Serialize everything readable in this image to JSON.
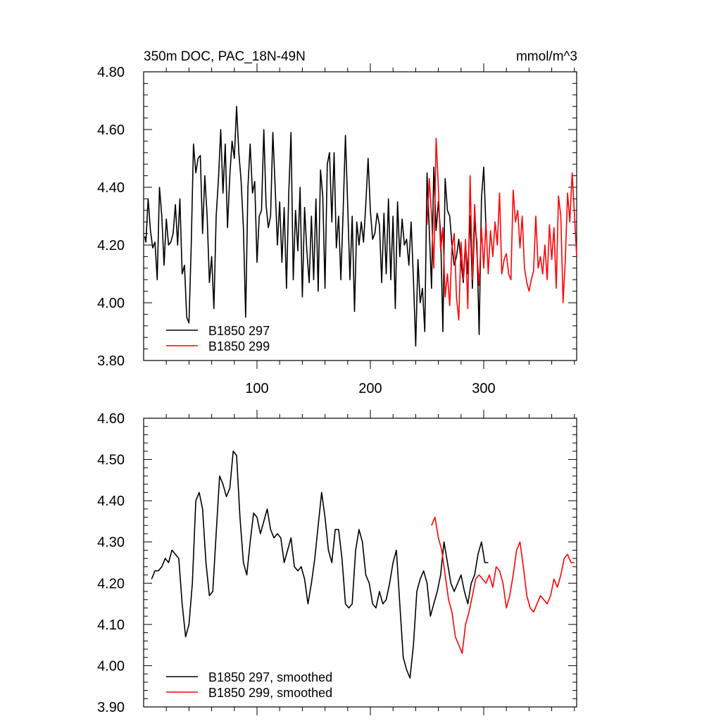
{
  "colors": {
    "series_297": "#000000",
    "series_299": "#ff0000",
    "axis": "#000000",
    "background": "#ffffff"
  },
  "chart_data": [
    {
      "type": "line",
      "title": "350m DOC, PAC_18N-49N",
      "units": "mmol/m^3",
      "xlabel": "",
      "ylabel": "",
      "xlim": [
        0,
        382
      ],
      "ylim": [
        3.8,
        4.8
      ],
      "xticks": [
        100,
        200,
        300
      ],
      "xtick_labels": [
        "100",
        "200",
        "300"
      ],
      "yticks": [
        3.8,
        4.0,
        4.2,
        4.4,
        4.6,
        4.8
      ],
      "ytick_labels": [
        "3.80",
        "4.00",
        "4.20",
        "4.40",
        "4.60",
        "4.80"
      ],
      "legend_position": "bottom-left",
      "series": [
        {
          "name": "B1850 297",
          "color": "#000000",
          "x": [
            1,
            2,
            4,
            6,
            8,
            10,
            12,
            14,
            16,
            18,
            20,
            22,
            24,
            26,
            28,
            30,
            32,
            34,
            36,
            38,
            40,
            42,
            44,
            46,
            48,
            50,
            52,
            54,
            56,
            58,
            60,
            62,
            64,
            66,
            68,
            70,
            72,
            74,
            76,
            78,
            80,
            82,
            84,
            86,
            88,
            90,
            92,
            94,
            96,
            98,
            100,
            102,
            104,
            106,
            108,
            110,
            112,
            114,
            116,
            118,
            120,
            122,
            124,
            126,
            128,
            130,
            132,
            134,
            136,
            138,
            140,
            142,
            144,
            146,
            148,
            150,
            152,
            154,
            156,
            158,
            160,
            162,
            164,
            166,
            168,
            170,
            172,
            174,
            176,
            178,
            180,
            182,
            184,
            186,
            188,
            190,
            192,
            194,
            196,
            198,
            200,
            202,
            204,
            206,
            208,
            210,
            212,
            214,
            216,
            218,
            220,
            222,
            224,
            226,
            228,
            230,
            232,
            234,
            236,
            238,
            240,
            242,
            244,
            246,
            248,
            250,
            252,
            254,
            256,
            258,
            260,
            262,
            264,
            266,
            268,
            270,
            272,
            274,
            276,
            278,
            280,
            282,
            284,
            286,
            288,
            290,
            292,
            294,
            296,
            298,
            300,
            302
          ],
          "values": [
            4.23,
            4.21,
            4.36,
            4.25,
            4.19,
            4.21,
            4.08,
            4.4,
            4.3,
            4.13,
            4.29,
            4.2,
            4.21,
            4.24,
            4.34,
            4.2,
            4.36,
            4.1,
            4.13,
            3.95,
            3.93,
            4.2,
            4.55,
            4.45,
            4.5,
            4.51,
            4.24,
            4.44,
            4.3,
            4.07,
            4.16,
            3.98,
            4.3,
            4.43,
            4.6,
            4.38,
            4.55,
            4.26,
            4.44,
            4.56,
            4.5,
            4.68,
            4.52,
            4.42,
            4.26,
            3.95,
            4.4,
            4.55,
            4.38,
            4.42,
            4.14,
            4.3,
            4.32,
            4.6,
            4.34,
            4.26,
            4.3,
            4.59,
            4.4,
            4.2,
            4.35,
            4.14,
            4.33,
            4.05,
            4.38,
            4.59,
            4.08,
            4.32,
            4.18,
            4.4,
            4.02,
            4.33,
            4.18,
            4.07,
            4.3,
            4.08,
            4.36,
            4.04,
            4.46,
            4.37,
            4.05,
            4.48,
            4.52,
            4.28,
            4.52,
            4.19,
            4.3,
            4.08,
            4.32,
            4.58,
            4.34,
            4.08,
            4.3,
            3.97,
            4.28,
            4.2,
            4.28,
            4.21,
            4.34,
            4.5,
            4.32,
            4.22,
            4.24,
            4.31,
            4.27,
            4.07,
            4.31,
            4.1,
            4.36,
            4.08,
            4.3,
            3.98,
            4.35,
            4.16,
            4.29,
            4.2,
            4.22,
            4.13,
            4.28,
            4.08,
            3.85,
            4.15,
            4.0,
            4.05,
            3.9,
            4.45,
            4.25,
            4.05,
            4.47,
            4.25,
            4.35,
            4.24,
            3.9,
            4.43,
            4.32,
            4.3,
            4.2,
            4.13,
            4.16,
            4.22,
            4.14,
            4.07,
            4.2,
            4.1,
            4.3,
            4.05,
            4.28,
            4.21,
            3.89,
            4.36,
            4.47,
            4.26
          ]
        },
        {
          "name": "B1850 299",
          "color": "#ff0000",
          "x": [
            250,
            252,
            254,
            256,
            258,
            260,
            262,
            264,
            266,
            268,
            270,
            272,
            274,
            276,
            278,
            280,
            282,
            284,
            286,
            288,
            290,
            292,
            294,
            296,
            298,
            300,
            302,
            304,
            306,
            308,
            310,
            312,
            314,
            316,
            318,
            320,
            322,
            324,
            326,
            328,
            330,
            332,
            334,
            336,
            338,
            340,
            342,
            344,
            346,
            348,
            350,
            352,
            354,
            356,
            358,
            360,
            362,
            364,
            366,
            368,
            370,
            372,
            374,
            376,
            378,
            380,
            382
          ],
          "values": [
            4.27,
            4.43,
            4.3,
            4.12,
            4.57,
            4.4,
            4.18,
            4.26,
            4.02,
            4.1,
            3.99,
            4.19,
            4.24,
            4.02,
            3.94,
            4.21,
            4.08,
            4.22,
            3.98,
            4.44,
            4.08,
            4.34,
            4.17,
            4.06,
            4.26,
            4.12,
            4.28,
            4.1,
            4.25,
            4.16,
            4.28,
            4.2,
            4.38,
            4.1,
            4.15,
            4.17,
            4.1,
            4.08,
            4.39,
            4.28,
            4.32,
            4.19,
            4.3,
            4.12,
            4.07,
            4.04,
            4.08,
            4.11,
            4.3,
            4.12,
            4.16,
            4.1,
            4.2,
            4.08,
            4.27,
            4.15,
            4.26,
            4.05,
            4.37,
            4.3,
            4.0,
            4.15,
            4.38,
            4.28,
            4.45,
            4.31,
            4.16
          ]
        }
      ]
    },
    {
      "type": "line",
      "title": "",
      "xlabel": "",
      "ylabel": "",
      "xlim": [
        0,
        382
      ],
      "ylim": [
        3.9,
        4.6
      ],
      "xticks": [
        100,
        200,
        300
      ],
      "yticks": [
        3.9,
        4.0,
        4.1,
        4.2,
        4.3,
        4.4,
        4.5,
        4.6
      ],
      "ytick_labels": [
        "3.90",
        "4.00",
        "4.10",
        "4.20",
        "4.30",
        "4.40",
        "4.50",
        "4.60"
      ],
      "legend_position": "bottom-left",
      "series": [
        {
          "name": "B1850 297, smoothed",
          "color": "#000000",
          "x": [
            7,
            10,
            13,
            16,
            19,
            22,
            25,
            28,
            31,
            34,
            37,
            40,
            43,
            46,
            49,
            52,
            55,
            58,
            61,
            64,
            67,
            70,
            73,
            76,
            79,
            82,
            85,
            88,
            91,
            94,
            97,
            100,
            103,
            106,
            109,
            112,
            115,
            118,
            121,
            124,
            127,
            130,
            133,
            136,
            139,
            142,
            145,
            148,
            151,
            154,
            157,
            160,
            163,
            166,
            169,
            172,
            175,
            178,
            181,
            184,
            187,
            190,
            193,
            196,
            199,
            202,
            205,
            208,
            211,
            214,
            217,
            220,
            223,
            226,
            229,
            232,
            235,
            238,
            241,
            244,
            247,
            250,
            253,
            256,
            259,
            262,
            265,
            268,
            271,
            274,
            277,
            280,
            283,
            286,
            289,
            292,
            295,
            298,
            301,
            304
          ],
          "values": [
            4.21,
            4.23,
            4.23,
            4.24,
            4.26,
            4.25,
            4.28,
            4.27,
            4.26,
            4.15,
            4.07,
            4.1,
            4.2,
            4.4,
            4.42,
            4.38,
            4.25,
            4.17,
            4.18,
            4.32,
            4.46,
            4.44,
            4.41,
            4.43,
            4.52,
            4.51,
            4.36,
            4.25,
            4.22,
            4.3,
            4.37,
            4.36,
            4.32,
            4.35,
            4.38,
            4.33,
            4.31,
            4.32,
            4.31,
            4.25,
            4.28,
            4.31,
            4.24,
            4.23,
            4.24,
            4.21,
            4.15,
            4.2,
            4.26,
            4.34,
            4.42,
            4.36,
            4.28,
            4.25,
            4.33,
            4.33,
            4.26,
            4.15,
            4.14,
            4.15,
            4.28,
            4.33,
            4.3,
            4.22,
            4.2,
            4.15,
            4.14,
            4.18,
            4.15,
            4.16,
            4.2,
            4.25,
            4.28,
            4.15,
            4.02,
            3.99,
            3.97,
            4.05,
            4.18,
            4.21,
            4.23,
            4.2,
            4.12,
            4.15,
            4.18,
            4.22,
            4.3,
            4.25,
            4.2,
            4.18,
            4.2,
            4.22,
            4.18,
            4.15,
            4.2,
            4.22,
            4.27,
            4.3,
            4.25,
            4.25
          ]
        },
        {
          "name": "B1850 299, smoothed",
          "color": "#ff0000",
          "x": [
            254,
            257,
            260,
            263,
            266,
            269,
            272,
            275,
            278,
            281,
            284,
            287,
            290,
            293,
            296,
            299,
            302,
            305,
            308,
            311,
            314,
            317,
            320,
            323,
            326,
            329,
            332,
            335,
            338,
            341,
            344,
            347,
            350,
            353,
            356,
            359,
            362,
            365,
            368,
            371,
            374,
            377,
            380
          ],
          "values": [
            4.34,
            4.36,
            4.31,
            4.28,
            4.22,
            4.16,
            4.13,
            4.07,
            4.05,
            4.03,
            4.1,
            4.13,
            4.17,
            4.21,
            4.22,
            4.21,
            4.2,
            4.22,
            4.19,
            4.24,
            4.23,
            4.2,
            4.14,
            4.17,
            4.22,
            4.28,
            4.3,
            4.24,
            4.17,
            4.14,
            4.13,
            4.15,
            4.17,
            4.16,
            4.15,
            4.17,
            4.21,
            4.19,
            4.22,
            4.26,
            4.27,
            4.25,
            4.25
          ]
        }
      ]
    }
  ]
}
